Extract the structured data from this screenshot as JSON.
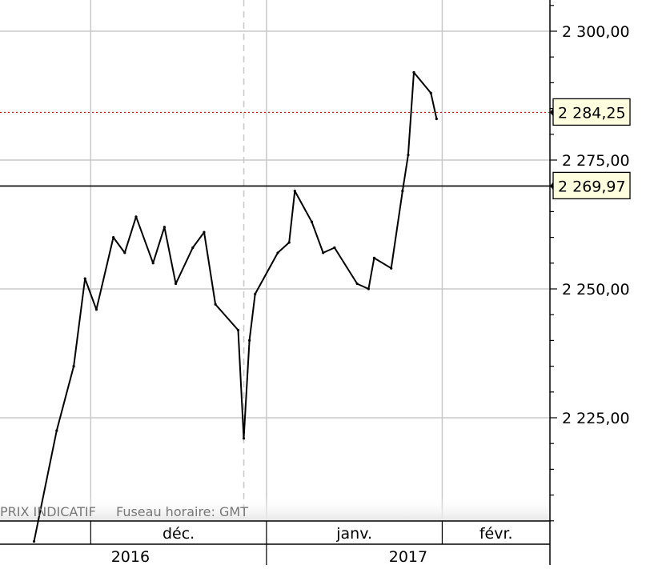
{
  "chart_data": {
    "type": "line",
    "title": "",
    "xlabel": "",
    "ylabel": "",
    "source_note": "PRIX INDICATIF",
    "timezone_note": "Fuseau horaire: GMT",
    "x": [
      "2016-11-21",
      "2016-11-25",
      "2016-11-28",
      "2016-11-30",
      "2016-12-02",
      "2016-12-05",
      "2016-12-07",
      "2016-12-09",
      "2016-12-12",
      "2016-12-14",
      "2016-12-16",
      "2016-12-19",
      "2016-12-21",
      "2016-12-23",
      "2016-12-27",
      "2016-12-28",
      "2016-12-29",
      "2016-12-30",
      "2017-01-03",
      "2017-01-05",
      "2017-01-06",
      "2017-01-09",
      "2017-01-11",
      "2017-01-13",
      "2017-01-17",
      "2017-01-19",
      "2017-01-20",
      "2017-01-23",
      "2017-01-25",
      "2017-01-26",
      "2017-01-27",
      "2017-01-30",
      "2017-01-31"
    ],
    "series": [
      {
        "values": [
          2201.0,
          2222.5,
          2235.0,
          2252.0,
          2246.0,
          2260.0,
          2257.0,
          2264.0,
          2255.0,
          2262.0,
          2251.0,
          2258.0,
          2261.0,
          2247.0,
          2242.0,
          2221.0,
          2240.0,
          2249.0,
          2257.0,
          2259.0,
          2269.0,
          2263.0,
          2257.0,
          2258.0,
          2251.0,
          2250.0,
          2256.0,
          2254.0,
          2269.0,
          2276.0,
          2292.0,
          2288.0,
          2283.0
        ]
      }
    ],
    "ylim": [
      2200,
      2320
    ],
    "y_ticks": [
      "2 225,00",
      "2 250,00",
      "2 275,00",
      "2 300,00"
    ],
    "y_tick_values": [
      2225,
      2250,
      2275,
      2300
    ],
    "x_month_labels": [
      {
        "label": "déc.",
        "date": "2016-12-01"
      },
      {
        "label": "janv.",
        "date": "2017-01-01"
      },
      {
        "label": "févr.",
        "date": "2017-02-01"
      }
    ],
    "x_year_labels": [
      {
        "label": "2016",
        "start": "2016-11-01",
        "end": "2016-12-31"
      },
      {
        "label": "2017",
        "start": "2017-01-01",
        "end": "2017-02-28"
      }
    ],
    "x_vertical_gridlines": [
      "2016-12-01",
      "2017-01-01",
      "2017-02-01"
    ],
    "x_dashed_gridline": "2016-12-28",
    "x_range": [
      "2016-11-15",
      "2017-02-20"
    ],
    "annotations": [
      {
        "kind": "last-price-line",
        "value": 2284.25,
        "label": "2 284,25",
        "color": "#cc0000",
        "style": "dotted"
      },
      {
        "kind": "horizontal-level-line",
        "value": 2269.97,
        "label": "2 269,97",
        "color": "#000000",
        "style": "solid"
      }
    ],
    "grid": true,
    "legend": "none",
    "colors": {
      "line": "#000000",
      "grid": "#c8c8c8",
      "last_price": "#cc0000",
      "label_bg": "#ffffe0",
      "note_text": "#777777",
      "axis_bg": "#ffffff"
    }
  }
}
